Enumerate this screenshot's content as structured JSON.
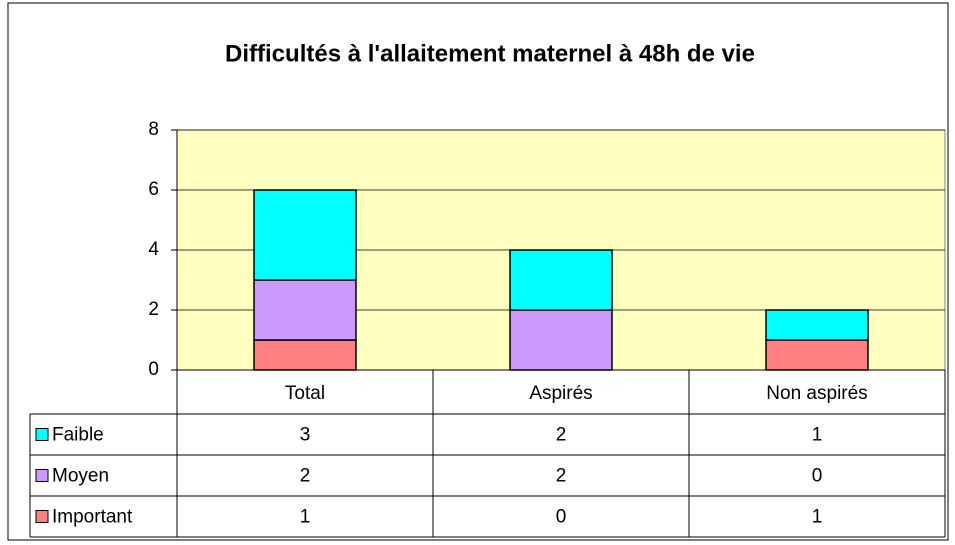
{
  "chart_data": {
    "type": "stacked_bar",
    "title": "Difficultés à l'allaitement maternel à 48h de vie",
    "categories": [
      "Total",
      "Aspirés",
      "Non aspirés"
    ],
    "series": [
      {
        "name": "Important",
        "color": "#ff8080",
        "values": [
          1,
          0,
          1
        ]
      },
      {
        "name": "Moyen",
        "color": "#cc99ff",
        "values": [
          2,
          2,
          0
        ]
      },
      {
        "name": "Faible",
        "color": "#00ffff",
        "values": [
          3,
          2,
          1
        ]
      }
    ],
    "ylim": [
      0,
      8
    ],
    "yticks": [
      0,
      2,
      4,
      6,
      8
    ],
    "grid": true,
    "plot_background": "#ffffc0"
  }
}
